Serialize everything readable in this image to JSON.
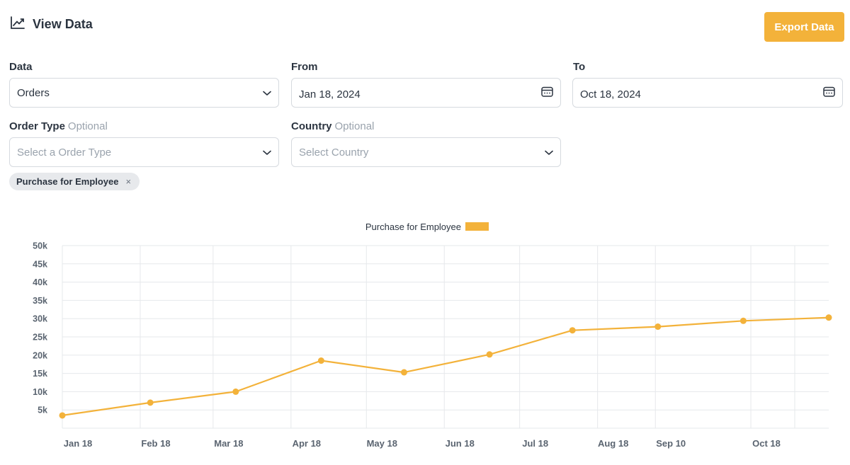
{
  "header": {
    "title": "View Data",
    "icon": "line-chart-icon"
  },
  "toolbar": {
    "export_label": "Export Data"
  },
  "filters": {
    "data": {
      "label": "Data",
      "value": "Orders"
    },
    "from": {
      "label": "From",
      "value": "Jan 18, 2024"
    },
    "to": {
      "label": "To",
      "value": "Oct 18, 2024"
    },
    "order_type": {
      "label": "Order Type",
      "optional": "Optional",
      "placeholder": "Select a Order Type"
    },
    "country": {
      "label": "Country",
      "optional": "Optional",
      "placeholder": "Select Country"
    }
  },
  "chips": [
    {
      "label": "Purchase for Employee",
      "remove": "×"
    }
  ],
  "colors": {
    "accent": "#f3b23a",
    "chip_bg": "#e7e9ec",
    "grid": "#e6e8eb"
  },
  "chart_data": {
    "type": "line",
    "legend": {
      "position": "top-center"
    },
    "grid": true,
    "ylim": [
      0,
      50000
    ],
    "y_ticks": [
      {
        "v": 5000,
        "label": "5k"
      },
      {
        "v": 10000,
        "label": "10k"
      },
      {
        "v": 15000,
        "label": "15k"
      },
      {
        "v": 20000,
        "label": "20k"
      },
      {
        "v": 25000,
        "label": "25k"
      },
      {
        "v": 30000,
        "label": "30k"
      },
      {
        "v": 35000,
        "label": "35k"
      },
      {
        "v": 40000,
        "label": "40k"
      },
      {
        "v": 45000,
        "label": "45k"
      },
      {
        "v": 50000,
        "label": "50k"
      }
    ],
    "x_ticks": [
      {
        "x": "2024-01-18",
        "label": "Jan 18"
      },
      {
        "x": "2024-02-18",
        "label": "Feb 18"
      },
      {
        "x": "2024-03-18",
        "label": "Mar 18"
      },
      {
        "x": "2024-04-18",
        "label": "Apr 18"
      },
      {
        "x": "2024-05-18",
        "label": "May 18"
      },
      {
        "x": "2024-06-18",
        "label": "Jun 18"
      },
      {
        "x": "2024-07-18",
        "label": "Jul 18"
      },
      {
        "x": "2024-08-18",
        "label": "Aug 18"
      },
      {
        "x": "2024-09-10",
        "label": "Sep 10"
      },
      {
        "x": "2024-10-18",
        "label": "Oct 18"
      }
    ],
    "xlim": [
      "2024-01-18",
      "2024-11-18"
    ],
    "series": [
      {
        "name": "Purchase for Employee",
        "color": "#f3b23a",
        "points": [
          {
            "x": "2024-01-18",
            "y": 3500
          },
          {
            "x": "2024-02-22",
            "y": 7000
          },
          {
            "x": "2024-03-27",
            "y": 10000
          },
          {
            "x": "2024-04-30",
            "y": 18500
          },
          {
            "x": "2024-06-02",
            "y": 15300
          },
          {
            "x": "2024-07-06",
            "y": 20200
          },
          {
            "x": "2024-08-08",
            "y": 26800
          },
          {
            "x": "2024-09-11",
            "y": 27800
          },
          {
            "x": "2024-10-15",
            "y": 29400
          },
          {
            "x": "2024-11-18",
            "y": 30300
          }
        ]
      }
    ]
  }
}
